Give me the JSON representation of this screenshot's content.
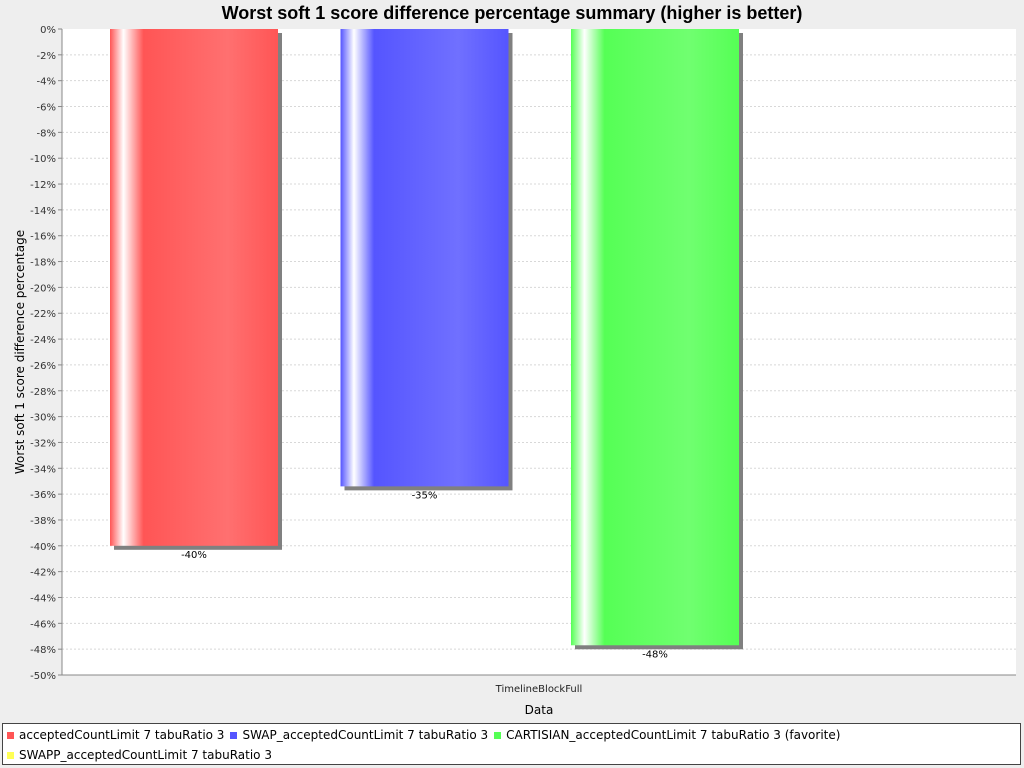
{
  "chart_data": {
    "type": "bar",
    "title": "Worst soft 1 score difference percentage summary (higher is better)",
    "xlabel": "Data",
    "ylabel": "Worst soft 1 score difference percentage",
    "categories": [
      "TimelineBlockFull"
    ],
    "ylim": [
      -50,
      0
    ],
    "ytick_step": 2,
    "grid": true,
    "legend_position": "bottom",
    "series": [
      {
        "name": "acceptedCountLimit 7 tabuRatio 3",
        "values": [
          -40
        ],
        "label": "-40%",
        "color": "#ff5555"
      },
      {
        "name": "SWAP_acceptedCountLimit 7 tabuRatio 3",
        "values": [
          -35.4
        ],
        "label": "-35%",
        "color": "#5555ff"
      },
      {
        "name": "CARTISIAN_acceptedCountLimit 7 tabuRatio 3 (favorite)",
        "values": [
          -47.7
        ],
        "label": "-48%",
        "color": "#55ff55"
      },
      {
        "name": "SWAPP_acceptedCountLimit 7 tabuRatio 3",
        "values": [
          null
        ],
        "label": "",
        "color": "#ffff55"
      }
    ]
  }
}
